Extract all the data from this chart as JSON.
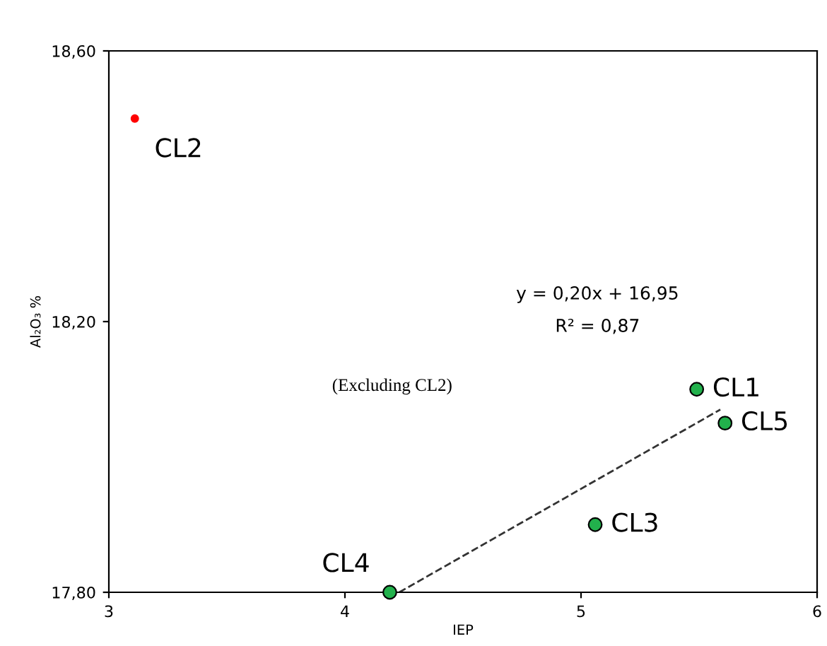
{
  "chart_data": {
    "type": "scatter",
    "xlabel": "IEP",
    "ylabel": "Al₂O₃ %",
    "xlim": [
      3,
      6
    ],
    "xticks": [
      3,
      4,
      5,
      6
    ],
    "ylim": [
      17.8,
      18.6
    ],
    "yticks": [
      {
        "value": 17.8,
        "label": "17,80"
      },
      {
        "value": 18.2,
        "label": "18,20"
      },
      {
        "value": 18.6,
        "label": "18,60"
      }
    ],
    "grid": false,
    "legend": false,
    "marker": "circle",
    "series": [
      {
        "color": "#22b14c",
        "x": [
          5.49,
          5.61,
          5.06,
          4.19
        ],
        "values": [
          18.1,
          18.05,
          17.9,
          17.8
        ],
        "value_labels": [
          "CL1",
          "CL5",
          "CL3",
          "CL4"
        ]
      },
      {
        "color": "#ff0000",
        "x": [
          3.11
        ],
        "values": [
          18.5
        ],
        "value_labels": [
          "CL2"
        ]
      },
      {
        "type": "line",
        "color": "#333333",
        "line_style": "dashed",
        "marker": "none",
        "x": [
          4.23,
          5.59
        ],
        "values": [
          17.8,
          18.07
        ]
      }
    ],
    "annotations": [
      "y = 0,20x + 16,95",
      "R² = 0,87",
      "(Excluding CL2)"
    ]
  }
}
